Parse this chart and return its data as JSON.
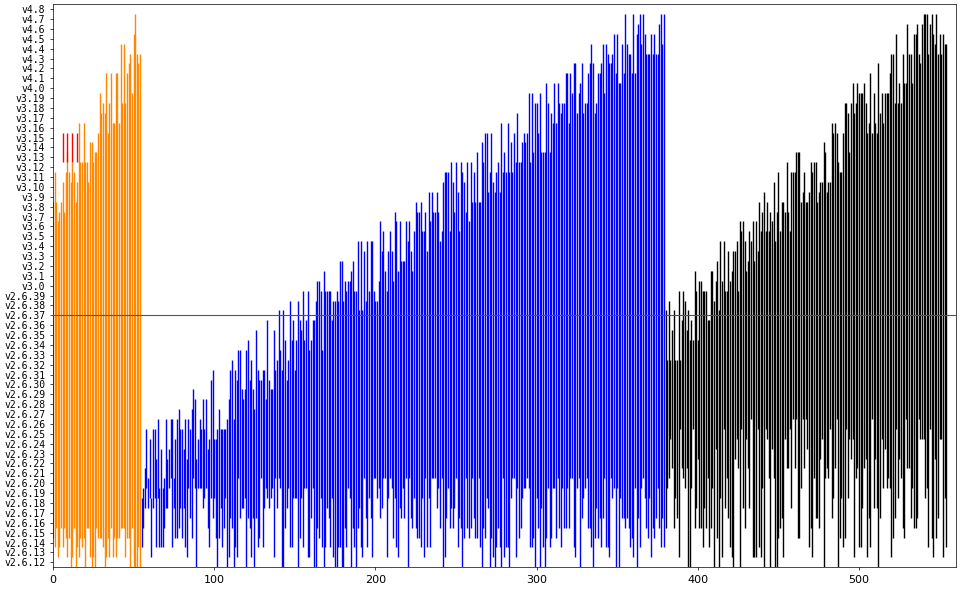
{
  "background_color": "#ffffff",
  "kernel_versions": [
    "v2.6.12",
    "v2.6.13",
    "v2.6.14",
    "v2.6.15",
    "v2.6.16",
    "v2.6.17",
    "v2.6.18",
    "v2.6.19",
    "v2.6.20",
    "v2.6.21",
    "v2.6.22",
    "v2.6.23",
    "v2.6.24",
    "v2.6.25",
    "v2.6.26",
    "v2.6.27",
    "v2.6.28",
    "v2.6.29",
    "v2.6.30",
    "v2.6.31",
    "v2.6.32",
    "v2.6.33",
    "v2.6.34",
    "v2.6.35",
    "v2.6.36",
    "v2.6.37",
    "v2.6.38",
    "v2.6.39",
    "v3.0",
    "v3.1",
    "v3.2",
    "v3.3",
    "v3.4",
    "v3.5",
    "v3.6",
    "v3.7",
    "v3.8",
    "v3.9",
    "v3.10",
    "v3.11",
    "v3.12",
    "v3.13",
    "v3.14",
    "v3.15",
    "v3.16",
    "v3.17",
    "v3.18",
    "v3.19",
    "v4.0",
    "v4.1",
    "v4.2",
    "v4.3",
    "v4.4",
    "v4.5",
    "v4.6",
    "v4.7",
    "v4.8"
  ],
  "hline_version": "v2.6.37",
  "hline_color": "#555555",
  "colors": {
    "critical": "#ff0000",
    "high": "#ff8800",
    "medium": "#0000ff",
    "low": "#000000"
  },
  "xlim_max": 560,
  "tick_fontsize": 7,
  "figsize": [
    9.6,
    5.89
  ],
  "dpi": 100
}
